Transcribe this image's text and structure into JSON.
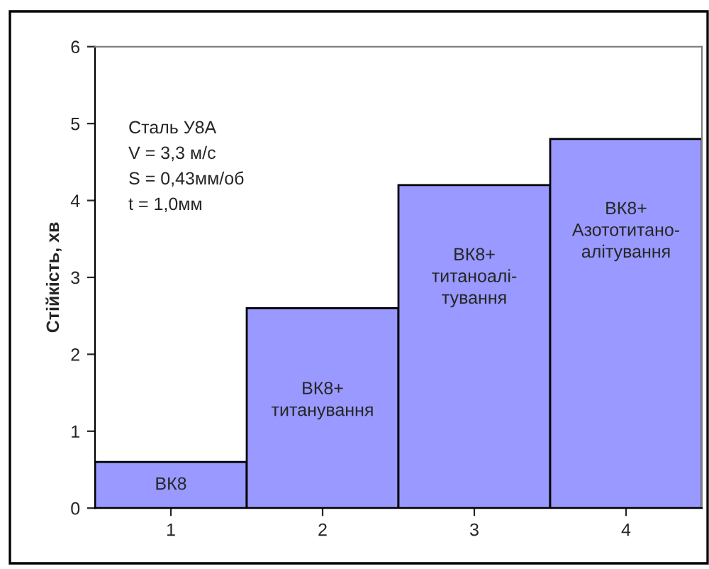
{
  "chart_data": {
    "type": "bar",
    "ylabel": "Стійкість, хв",
    "categories": [
      "1",
      "2",
      "3",
      "4"
    ],
    "values": [
      0.6,
      2.6,
      4.2,
      4.8
    ],
    "color": "#9999ff",
    "ylim": [
      0,
      6
    ],
    "yticks": [
      0,
      1,
      2,
      3,
      4,
      5,
      6
    ],
    "grid": false,
    "legend": false,
    "annotations": [
      "Сталь У8А\nV = 3,3 м/с\nS = 0,43мм/об\nt = 1,0мм",
      "ВК8",
      "ВК8+\nтитанування",
      "ВК8+\nтитаноалі-\nтування",
      "ВК8+\nАзототитано-\nалітування"
    ]
  }
}
